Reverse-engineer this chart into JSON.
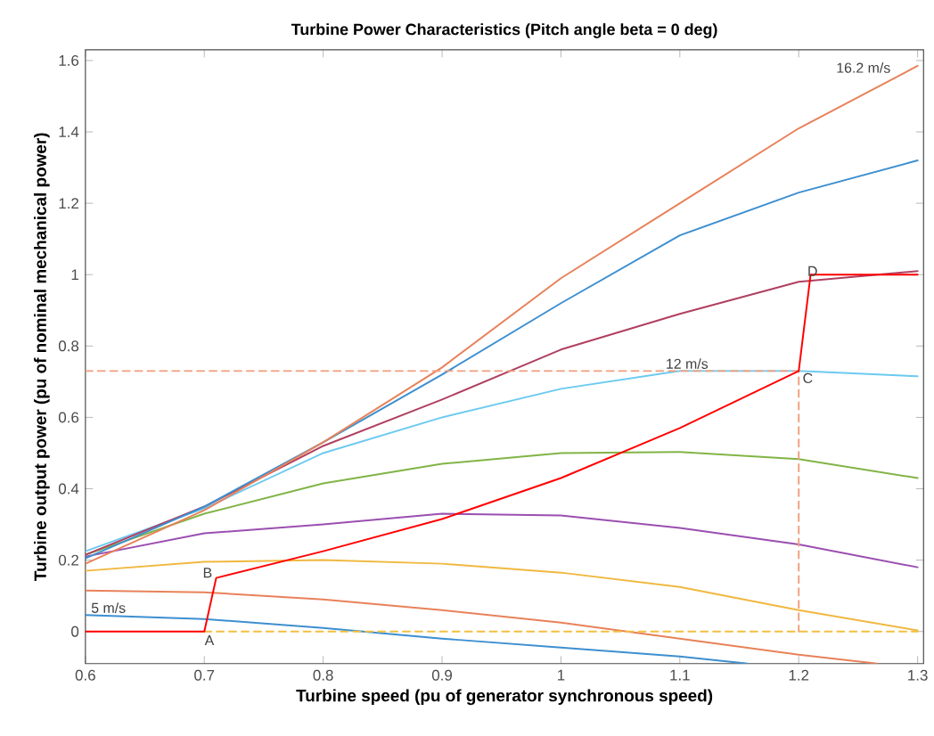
{
  "chart_data": {
    "type": "line",
    "title": "Turbine Power Characteristics (Pitch angle beta = 0 deg)",
    "xlabel": "Turbine speed (pu of generator synchronous speed)",
    "ylabel": "Turbine output power (pu of nominal mechanical power)",
    "xlim": [
      0.6,
      1.305
    ],
    "ylim": [
      -0.09,
      1.63
    ],
    "xticks": [
      0.6,
      0.7,
      0.8,
      0.9,
      1,
      1.1,
      1.2,
      1.3
    ],
    "yticks": [
      0,
      0.2,
      0.4,
      0.6,
      0.8,
      1,
      1.2,
      1.4,
      1.6
    ],
    "grid": false,
    "marker": "none",
    "line_style": "solid",
    "series": [
      {
        "color": "#3d8fd0",
        "x": [
          0.6,
          0.7,
          0.8,
          0.9,
          1.0,
          1.1,
          1.157
        ],
        "values": [
          0.046,
          0.035,
          0.01,
          -0.02,
          -0.045,
          -0.07,
          -0.09
        ]
      },
      {
        "color": "#e8825a",
        "x": [
          0.6,
          0.7,
          0.8,
          0.9,
          1.0,
          1.1,
          1.2,
          1.266
        ],
        "values": [
          0.115,
          0.11,
          0.09,
          0.06,
          0.025,
          -0.02,
          -0.065,
          -0.09
        ]
      },
      {
        "color": "#f0b840",
        "x": [
          0.6,
          0.7,
          0.8,
          0.9,
          1.0,
          1.1,
          1.2,
          1.3
        ],
        "values": [
          0.17,
          0.195,
          0.2,
          0.19,
          0.165,
          0.125,
          0.06,
          0.003
        ]
      },
      {
        "color": "#9b4fb0",
        "x": [
          0.6,
          0.7,
          0.8,
          0.9,
          1.0,
          1.1,
          1.2,
          1.3
        ],
        "values": [
          0.21,
          0.275,
          0.3,
          0.33,
          0.325,
          0.29,
          0.244,
          0.18
        ]
      },
      {
        "color": "#82b446",
        "x": [
          0.6,
          0.7,
          0.8,
          0.9,
          1.0,
          1.1,
          1.2,
          1.3
        ],
        "values": [
          0.215,
          0.33,
          0.415,
          0.47,
          0.5,
          0.503,
          0.483,
          0.43
        ]
      },
      {
        "color": "#6ccaf0",
        "x": [
          0.6,
          0.7,
          0.8,
          0.9,
          1.0,
          1.1,
          1.2,
          1.3
        ],
        "values": [
          0.225,
          0.345,
          0.5,
          0.6,
          0.68,
          0.73,
          0.73,
          0.715
        ]
      },
      {
        "color": "#b04060",
        "x": [
          0.6,
          0.7,
          0.8,
          0.9,
          1.0,
          1.1,
          1.2,
          1.3
        ],
        "values": [
          0.215,
          0.35,
          0.52,
          0.65,
          0.79,
          0.89,
          0.98,
          1.01
        ]
      },
      {
        "color": "#3d8fd0",
        "x": [
          0.6,
          0.7,
          0.8,
          0.9,
          1.0,
          1.1,
          1.2,
          1.3
        ],
        "values": [
          0.205,
          0.35,
          0.53,
          0.72,
          0.92,
          1.11,
          1.23,
          1.32
        ]
      },
      {
        "color": "#e8825a",
        "x": [
          0.6,
          0.7,
          0.8,
          0.9,
          1.0,
          1.1,
          1.2,
          1.3
        ],
        "values": [
          0.19,
          0.34,
          0.53,
          0.74,
          0.99,
          1.2,
          1.41,
          1.585
        ]
      },
      {
        "color": "#f0a080",
        "line_style": "dashed",
        "x": [
          0.6,
          1.2,
          1.2
        ],
        "values": [
          0.73,
          0.73,
          0
        ]
      },
      {
        "color": "#f2c040",
        "line_style": "dashed",
        "x": [
          0.7,
          1.3
        ],
        "values": [
          0,
          0
        ]
      },
      {
        "color": "#ff0000",
        "x": [
          0.6,
          0.7,
          0.71,
          0.8,
          0.9,
          1.0,
          1.1,
          1.2,
          1.21,
          1.3
        ],
        "values": [
          0,
          0,
          0.15,
          0.225,
          0.315,
          0.43,
          0.57,
          0.73,
          1.0,
          1.0
        ]
      }
    ],
    "annotations": [
      {
        "text": "16.2 m/s",
        "x": 1.3,
        "y": 1.585
      },
      {
        "text": "12 m/s",
        "x": 1.1,
        "y": 0.73
      },
      {
        "text": "5 m/s",
        "x": 0.6,
        "y": 0.046
      },
      {
        "text": "A",
        "x": 0.7,
        "y": 0
      },
      {
        "text": "B",
        "x": 0.71,
        "y": 0.15
      },
      {
        "text": "C",
        "x": 1.2,
        "y": 0.73
      },
      {
        "text": "D",
        "x": 1.21,
        "y": 1.0
      }
    ]
  }
}
